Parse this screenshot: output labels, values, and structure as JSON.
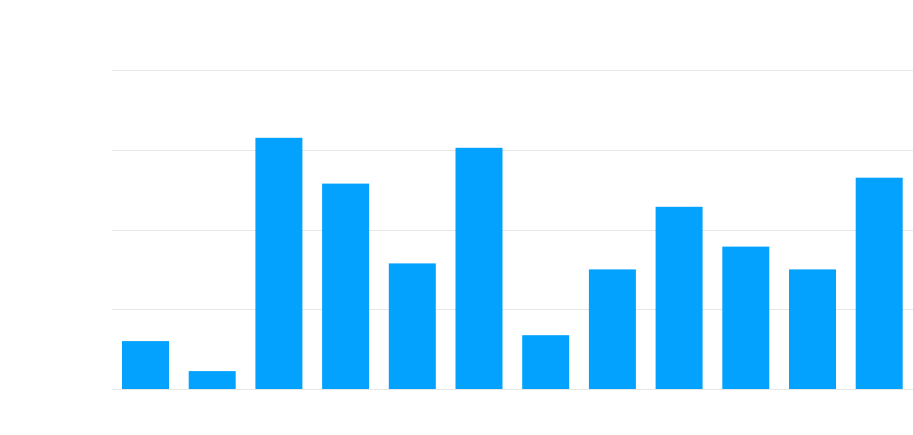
{
  "chart_data": {
    "type": "bar",
    "categories": [
      "",
      "",
      "",
      "",
      "",
      "",
      "",
      "",
      "",
      "",
      "",
      ""
    ],
    "values": [
      12,
      4.5,
      63,
      51.5,
      31.5,
      60.5,
      13.5,
      30,
      45.7,
      35.7,
      30,
      53
    ],
    "ylim": [
      0,
      80
    ],
    "yticks": [
      0,
      20,
      40,
      60,
      80
    ],
    "grid": true,
    "legend": "none",
    "colors": {
      "bar": "#03a2ff",
      "grid": "#e6e6e6"
    }
  }
}
